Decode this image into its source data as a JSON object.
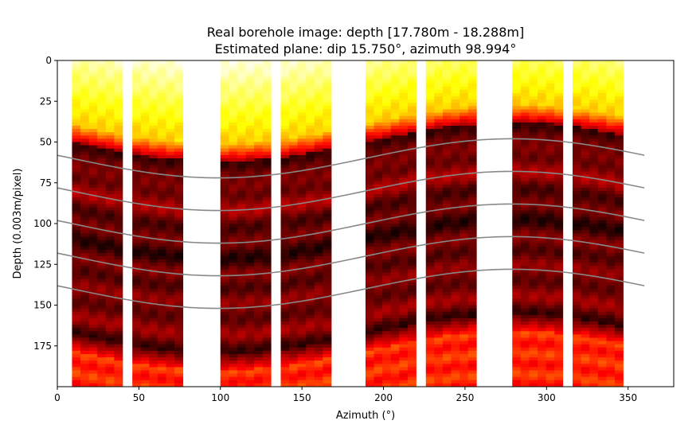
{
  "chart_data": {
    "type": "heatmap",
    "title": "Real borehole image: depth [17.780m - 18.288m]",
    "subtitle": "Estimated plane: dip 15.750°, azimuth 98.994°",
    "xlabel": "Azimuth (°)",
    "ylabel": "Depth (0.003m/pixel)",
    "xlim": [
      0,
      378
    ],
    "ylim": [
      200,
      0
    ],
    "x_ticks": [
      0,
      50,
      100,
      150,
      200,
      250,
      300,
      350
    ],
    "y_ticks": [
      0,
      25,
      50,
      75,
      100,
      125,
      150,
      175
    ],
    "colormap": "hot",
    "grid": false,
    "pad_strips": [
      {
        "az_start": 9,
        "az_end": 40
      },
      {
        "az_start": 46,
        "az_end": 77
      },
      {
        "az_start": 100,
        "az_end": 131
      },
      {
        "az_start": 137,
        "az_end": 168
      },
      {
        "az_start": 189,
        "az_end": 220
      },
      {
        "az_start": 226,
        "az_end": 257
      },
      {
        "az_start": 279,
        "az_end": 310
      },
      {
        "az_start": 316,
        "az_end": 347
      }
    ],
    "fitted_sinusoids": {
      "azimuth_range": [
        0,
        360
      ],
      "amplitude": 12,
      "trough_azimuth": 99,
      "center_depths": [
        60,
        80,
        100,
        120,
        140
      ],
      "color": "#888888"
    }
  }
}
